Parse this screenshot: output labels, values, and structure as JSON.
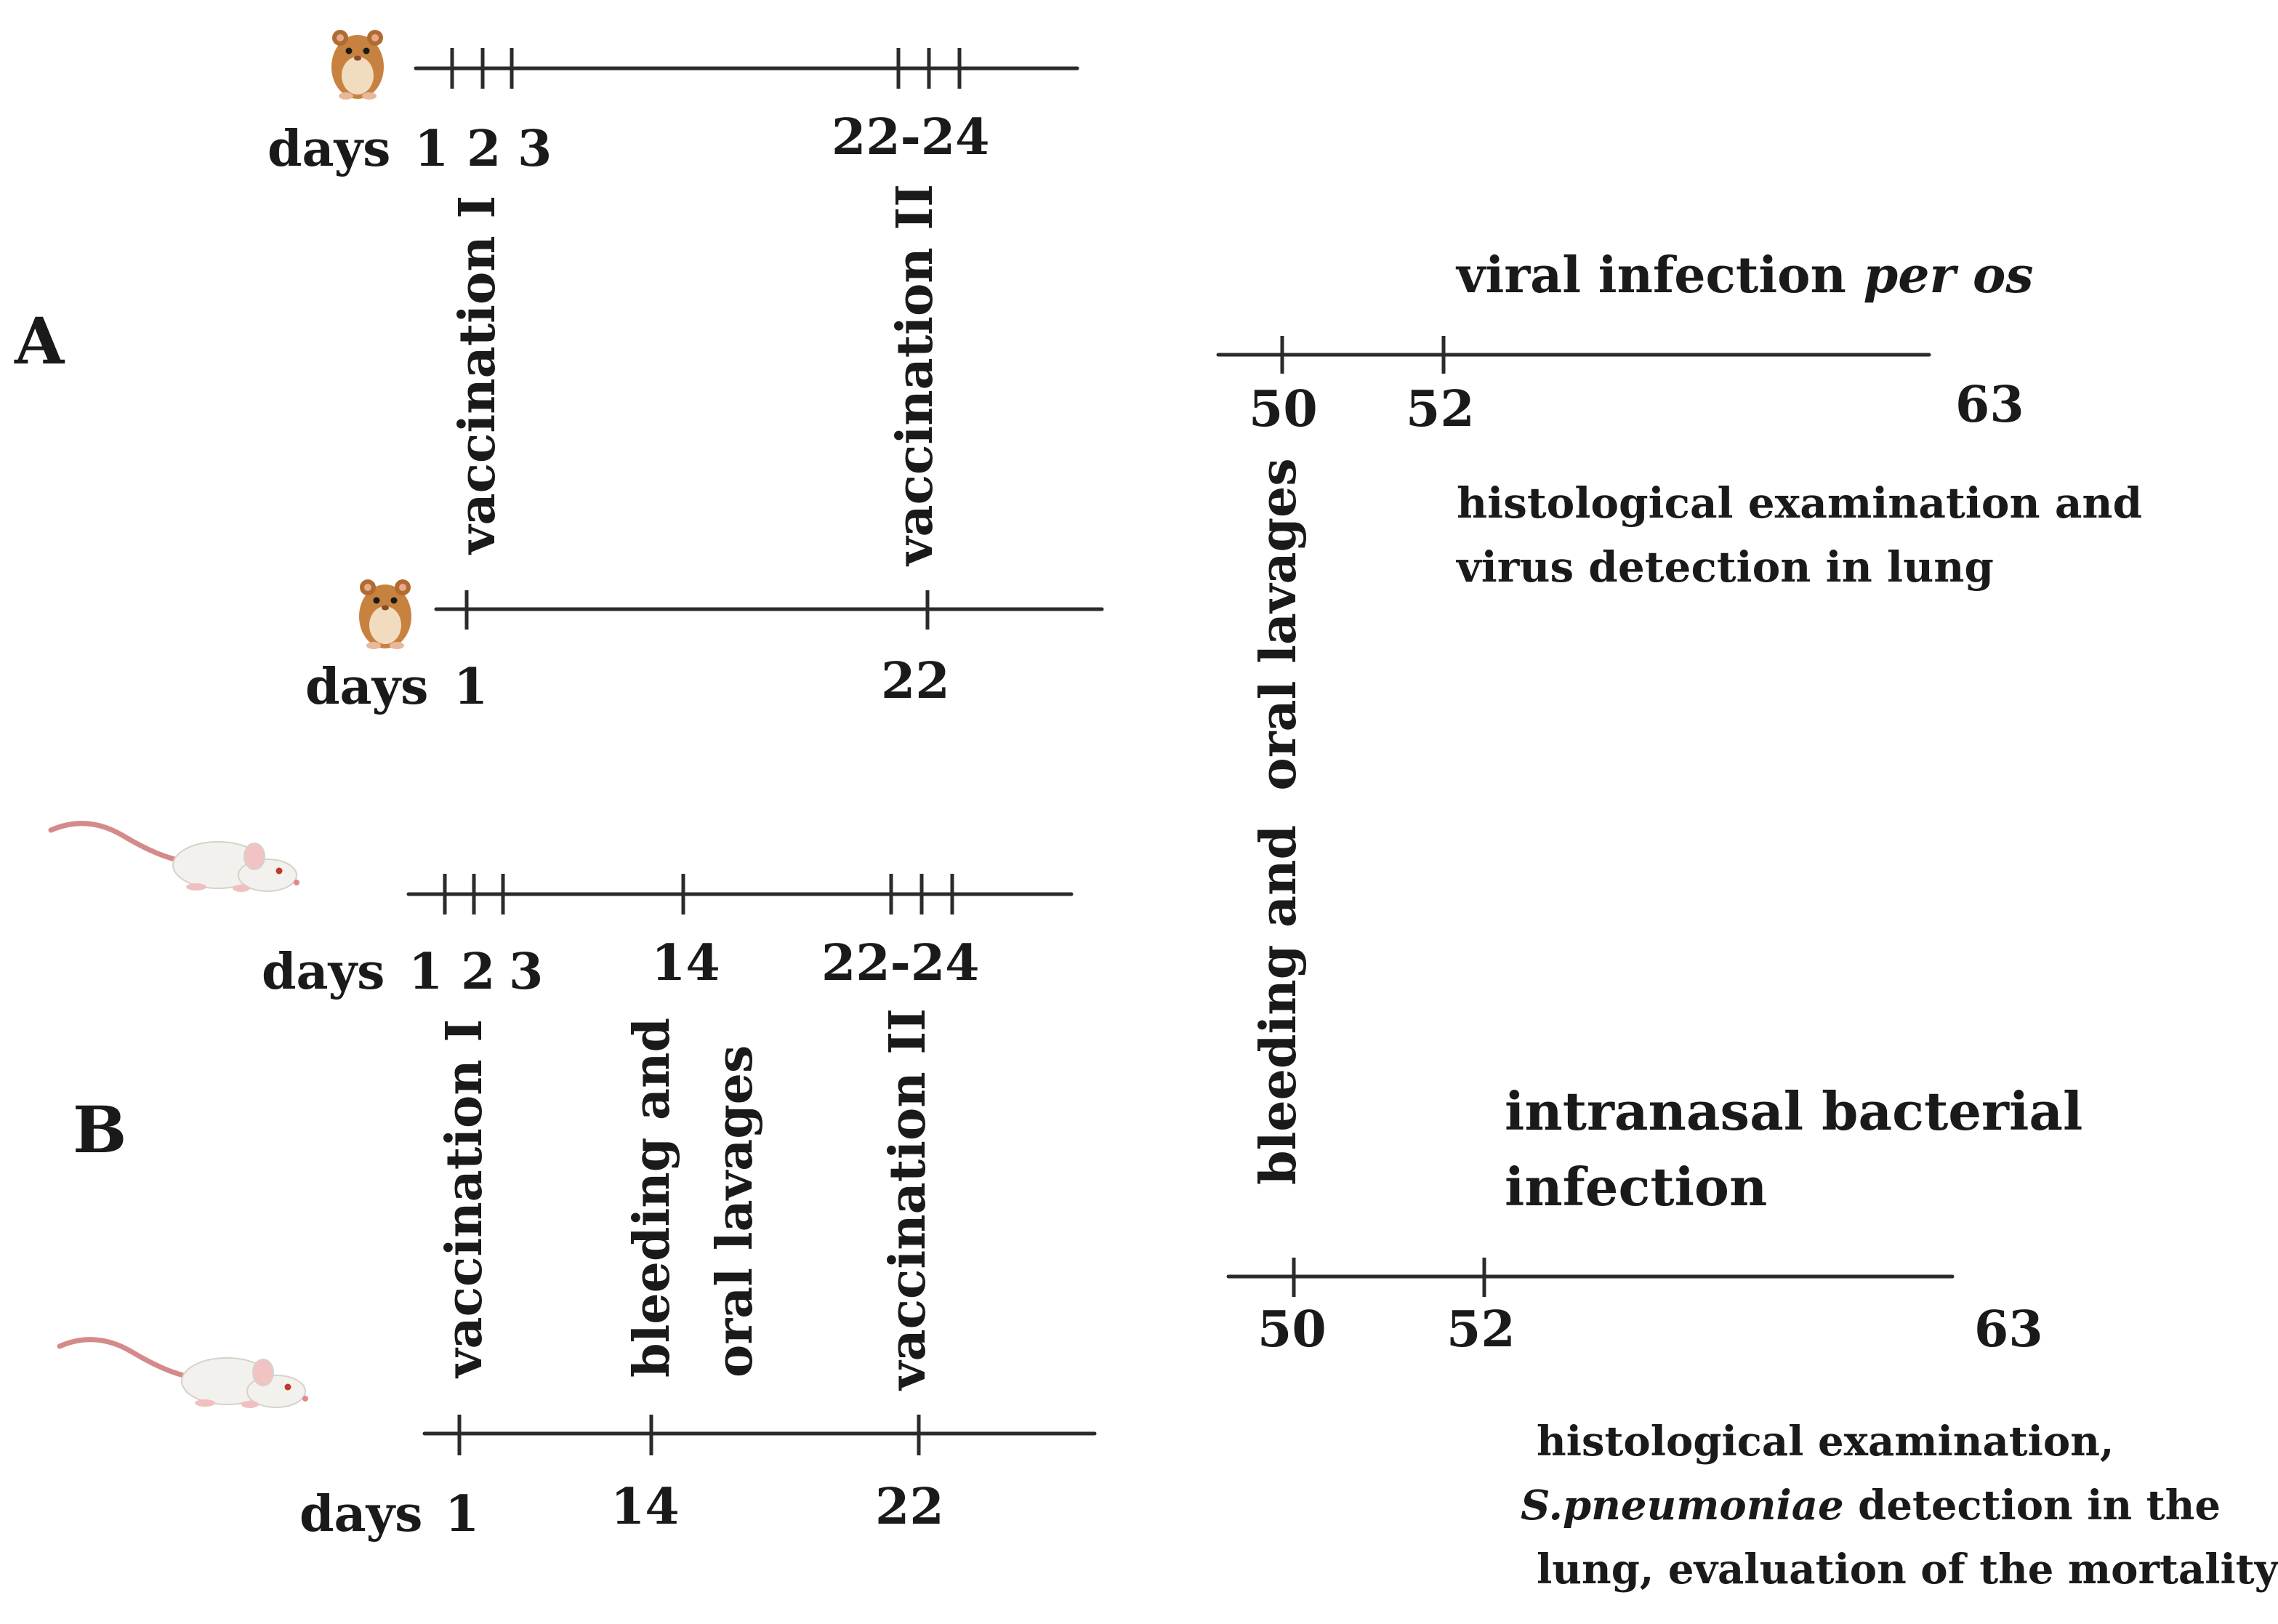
{
  "panels": {
    "a": "A",
    "b": "B"
  },
  "days_word": "days",
  "numbers": {
    "n1": "1",
    "n2": "2",
    "n3": "3",
    "n14": "14",
    "n22": "22",
    "n22_24": "22-24",
    "n50": "50",
    "n52": "52",
    "n63": "63"
  },
  "labels": {
    "vaccination_1": "vaccination I",
    "vaccination_2": "vaccination II",
    "bleeding_lavages": "bleeding and  oral lavages",
    "bleeding_and": "bleeding and",
    "oral_lavages": "oral lavages"
  },
  "section_a": {
    "infection_pre": "viral infection ",
    "infection_italic": "per os",
    "outcome_line1": "histological examination and",
    "outcome_line2": "virus detection in lung"
  },
  "section_b": {
    "infection_line1": "intranasal bacterial",
    "infection_line2": "infection",
    "outcome_line1": "histological examination,",
    "outcome_line2_italic": "S.pneumoniae",
    "outcome_line2_rest": " detection in the",
    "outcome_line3": "lung, evaluation of the mortality"
  },
  "animals": {
    "hamster": "hamster-icon",
    "mouse": "mouse-icon"
  },
  "colors": {
    "line": "#2b2b2b",
    "text": "#1a1a1a",
    "hamster_fur": "#c8823f",
    "mouse_fur": "#f3f1ee",
    "mouse_tail": "#d58a8a"
  }
}
